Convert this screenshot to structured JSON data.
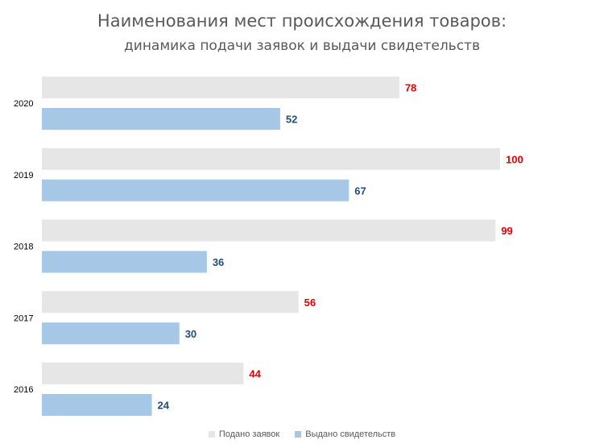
{
  "chart_data": {
    "type": "bar",
    "orientation": "horizontal",
    "title": "Наименования мест происхождения товаров:",
    "subtitle": "динамика подачи заявок и выдачи свидетельств",
    "categories": [
      "2020",
      "2019",
      "2018",
      "2017",
      "2016"
    ],
    "series": [
      {
        "name": "Подано заявок",
        "values": [
          78,
          100,
          99,
          56,
          44
        ],
        "color": "#e7e6e6",
        "label_color": "#e00000"
      },
      {
        "name": "Выдано свидетельств",
        "values": [
          52,
          67,
          36,
          30,
          24
        ],
        "color": "#a7c7e7",
        "label_color": "#1f4e79"
      }
    ],
    "xlim": [
      0,
      100
    ],
    "grid": false,
    "legend_position": "bottom"
  }
}
